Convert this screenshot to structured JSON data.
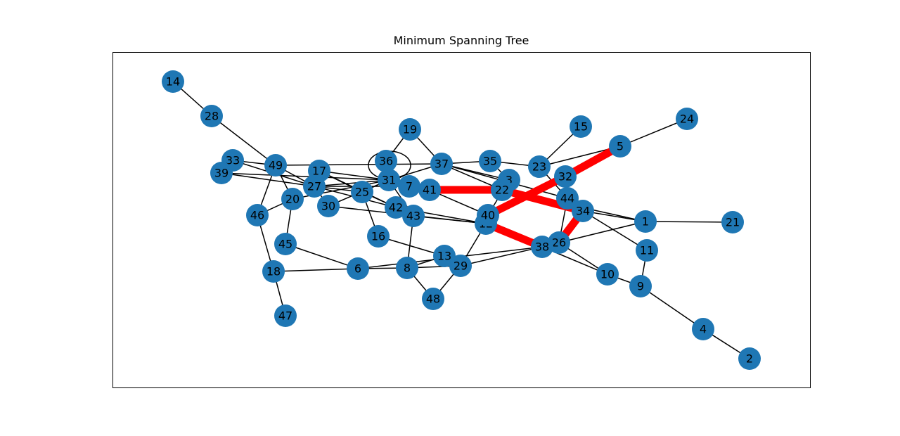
{
  "chart_data": {
    "type": "network",
    "title": "Minimum Spanning Tree",
    "node_color": "#1f77b4",
    "edge_color": "#000000",
    "mst_edge_color": "#ff0000",
    "label_color": "#000000",
    "frame_color": "#000000",
    "nodes": [
      {
        "id": "1"
      },
      {
        "id": "2"
      },
      {
        "id": "3"
      },
      {
        "id": "4"
      },
      {
        "id": "5"
      },
      {
        "id": "6"
      },
      {
        "id": "7"
      },
      {
        "id": "8"
      },
      {
        "id": "9"
      },
      {
        "id": "10"
      },
      {
        "id": "11"
      },
      {
        "id": "12"
      },
      {
        "id": "13"
      },
      {
        "id": "14"
      },
      {
        "id": "15"
      },
      {
        "id": "16"
      },
      {
        "id": "17"
      },
      {
        "id": "18"
      },
      {
        "id": "19"
      },
      {
        "id": "20"
      },
      {
        "id": "21"
      },
      {
        "id": "22"
      },
      {
        "id": "23"
      },
      {
        "id": "24"
      },
      {
        "id": "25"
      },
      {
        "id": "26"
      },
      {
        "id": "27"
      },
      {
        "id": "28"
      },
      {
        "id": "29"
      },
      {
        "id": "30"
      },
      {
        "id": "31"
      },
      {
        "id": "32"
      },
      {
        "id": "33"
      },
      {
        "id": "34"
      },
      {
        "id": "35"
      },
      {
        "id": "36"
      },
      {
        "id": "37"
      },
      {
        "id": "38"
      },
      {
        "id": "39"
      },
      {
        "id": "40"
      },
      {
        "id": "41"
      },
      {
        "id": "42"
      },
      {
        "id": "43"
      },
      {
        "id": "44"
      },
      {
        "id": "45"
      },
      {
        "id": "46"
      },
      {
        "id": "47"
      },
      {
        "id": "48"
      },
      {
        "id": "49"
      }
    ],
    "edges": [
      [
        "14",
        "28"
      ],
      [
        "28",
        "49"
      ],
      [
        "49",
        "33"
      ],
      [
        "49",
        "46"
      ],
      [
        "49",
        "20"
      ],
      [
        "49",
        "37"
      ],
      [
        "49",
        "27"
      ],
      [
        "33",
        "27"
      ],
      [
        "39",
        "27"
      ],
      [
        "39",
        "31"
      ],
      [
        "46",
        "18"
      ],
      [
        "46",
        "20"
      ],
      [
        "20",
        "45"
      ],
      [
        "20",
        "31"
      ],
      [
        "18",
        "47"
      ],
      [
        "18",
        "6"
      ],
      [
        "45",
        "6"
      ],
      [
        "6",
        "8"
      ],
      [
        "6",
        "38"
      ],
      [
        "8",
        "48"
      ],
      [
        "8",
        "13"
      ],
      [
        "8",
        "29"
      ],
      [
        "8",
        "43"
      ],
      [
        "48",
        "29"
      ],
      [
        "13",
        "16"
      ],
      [
        "13",
        "29"
      ],
      [
        "29",
        "12"
      ],
      [
        "29",
        "38"
      ],
      [
        "16",
        "25"
      ],
      [
        "25",
        "17"
      ],
      [
        "25",
        "27"
      ],
      [
        "25",
        "31"
      ],
      [
        "25",
        "42"
      ],
      [
        "30",
        "27"
      ],
      [
        "30",
        "31"
      ],
      [
        "30",
        "12"
      ],
      [
        "17",
        "27"
      ],
      [
        "17",
        "42"
      ],
      [
        "17",
        "31"
      ],
      [
        "17",
        "43"
      ],
      [
        "27",
        "31"
      ],
      [
        "27",
        "7"
      ],
      [
        "27",
        "42"
      ],
      [
        "31",
        "36"
      ],
      [
        "31",
        "37"
      ],
      [
        "31",
        "43"
      ],
      [
        "36",
        "36"
      ],
      [
        "36",
        "19"
      ],
      [
        "19",
        "37"
      ],
      [
        "37",
        "22"
      ],
      [
        "37",
        "44"
      ],
      [
        "37",
        "35"
      ],
      [
        "37",
        "3"
      ],
      [
        "35",
        "23"
      ],
      [
        "35",
        "3"
      ],
      [
        "42",
        "12"
      ],
      [
        "43",
        "12"
      ],
      [
        "41",
        "40"
      ],
      [
        "3",
        "40"
      ],
      [
        "23",
        "15"
      ],
      [
        "23",
        "5"
      ],
      [
        "23",
        "44"
      ],
      [
        "34",
        "1"
      ],
      [
        "34",
        "11"
      ],
      [
        "1",
        "21"
      ],
      [
        "1",
        "26"
      ],
      [
        "11",
        "9"
      ],
      [
        "9",
        "10"
      ],
      [
        "9",
        "4"
      ],
      [
        "4",
        "2"
      ],
      [
        "26",
        "10"
      ],
      [
        "38",
        "10"
      ],
      [
        "24",
        "5"
      ],
      [
        "44",
        "26"
      ],
      [
        "22",
        "1"
      ]
    ],
    "mst_edges": [
      [
        "41",
        "22"
      ],
      [
        "22",
        "34"
      ],
      [
        "5",
        "32"
      ],
      [
        "32",
        "40"
      ],
      [
        "40",
        "12"
      ],
      [
        "12",
        "38"
      ],
      [
        "38",
        "26"
      ],
      [
        "26",
        "34"
      ]
    ]
  }
}
